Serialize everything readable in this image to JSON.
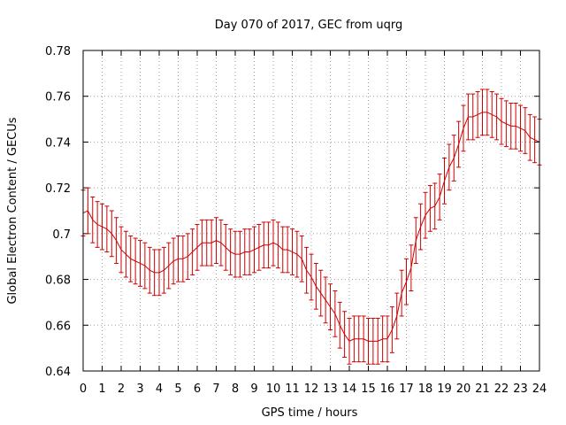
{
  "chart_data": {
    "type": "line",
    "title": "Day 070 of 2017, GEC from uqrg",
    "xlabel": "GPS time / hours",
    "ylabel": "Global Electron Content / GECUs",
    "xlim": [
      0,
      24
    ],
    "ylim": [
      0.64,
      0.78
    ],
    "xticks": [
      "0",
      "1",
      "2",
      "3",
      "4",
      "5",
      "6",
      "7",
      "8",
      "9",
      "10",
      "11",
      "12",
      "13",
      "14",
      "15",
      "16",
      "17",
      "18",
      "19",
      "20",
      "21",
      "22",
      "23",
      "24"
    ],
    "yticks": [
      "0.64",
      "0.66",
      "0.68",
      "0.7",
      "0.72",
      "0.74",
      "0.76",
      "0.78"
    ],
    "grid": true,
    "series_color": "#cc0000",
    "error": 0.01,
    "x": [
      0.0,
      0.25,
      0.5,
      0.75,
      1.0,
      1.25,
      1.5,
      1.75,
      2.0,
      2.25,
      2.5,
      2.75,
      3.0,
      3.25,
      3.5,
      3.75,
      4.0,
      4.25,
      4.5,
      4.75,
      5.0,
      5.25,
      5.5,
      5.75,
      6.0,
      6.25,
      6.5,
      6.75,
      7.0,
      7.25,
      7.5,
      7.75,
      8.0,
      8.25,
      8.5,
      8.75,
      9.0,
      9.25,
      9.5,
      9.75,
      10.0,
      10.25,
      10.5,
      10.75,
      11.0,
      11.25,
      11.5,
      11.75,
      12.0,
      12.25,
      12.5,
      12.75,
      13.0,
      13.25,
      13.5,
      13.75,
      14.0,
      14.25,
      14.5,
      14.75,
      15.0,
      15.25,
      15.5,
      15.75,
      16.0,
      16.25,
      16.5,
      16.75,
      17.0,
      17.25,
      17.5,
      17.75,
      18.0,
      18.25,
      18.5,
      18.75,
      19.0,
      19.25,
      19.5,
      19.75,
      20.0,
      20.25,
      20.5,
      20.75,
      21.0,
      21.25,
      21.5,
      21.75,
      22.0,
      22.25,
      22.5,
      22.75,
      23.0,
      23.25,
      23.5,
      23.75,
      24.0
    ],
    "y": [
      0.709,
      0.71,
      0.706,
      0.704,
      0.703,
      0.702,
      0.7,
      0.697,
      0.693,
      0.691,
      0.689,
      0.688,
      0.687,
      0.686,
      0.684,
      0.683,
      0.683,
      0.684,
      0.686,
      0.688,
      0.689,
      0.689,
      0.69,
      0.692,
      0.694,
      0.696,
      0.696,
      0.696,
      0.697,
      0.696,
      0.694,
      0.692,
      0.691,
      0.691,
      0.692,
      0.692,
      0.693,
      0.694,
      0.695,
      0.695,
      0.696,
      0.695,
      0.693,
      0.693,
      0.692,
      0.691,
      0.689,
      0.684,
      0.681,
      0.677,
      0.674,
      0.671,
      0.668,
      0.665,
      0.66,
      0.656,
      0.653,
      0.654,
      0.654,
      0.654,
      0.653,
      0.653,
      0.653,
      0.654,
      0.654,
      0.658,
      0.664,
      0.674,
      0.679,
      0.685,
      0.697,
      0.703,
      0.708,
      0.711,
      0.712,
      0.716,
      0.723,
      0.729,
      0.733,
      0.739,
      0.746,
      0.751,
      0.751,
      0.752,
      0.753,
      0.753,
      0.752,
      0.751,
      0.749,
      0.748,
      0.747,
      0.747,
      0.746,
      0.745,
      0.742,
      0.741,
      0.74
    ]
  }
}
